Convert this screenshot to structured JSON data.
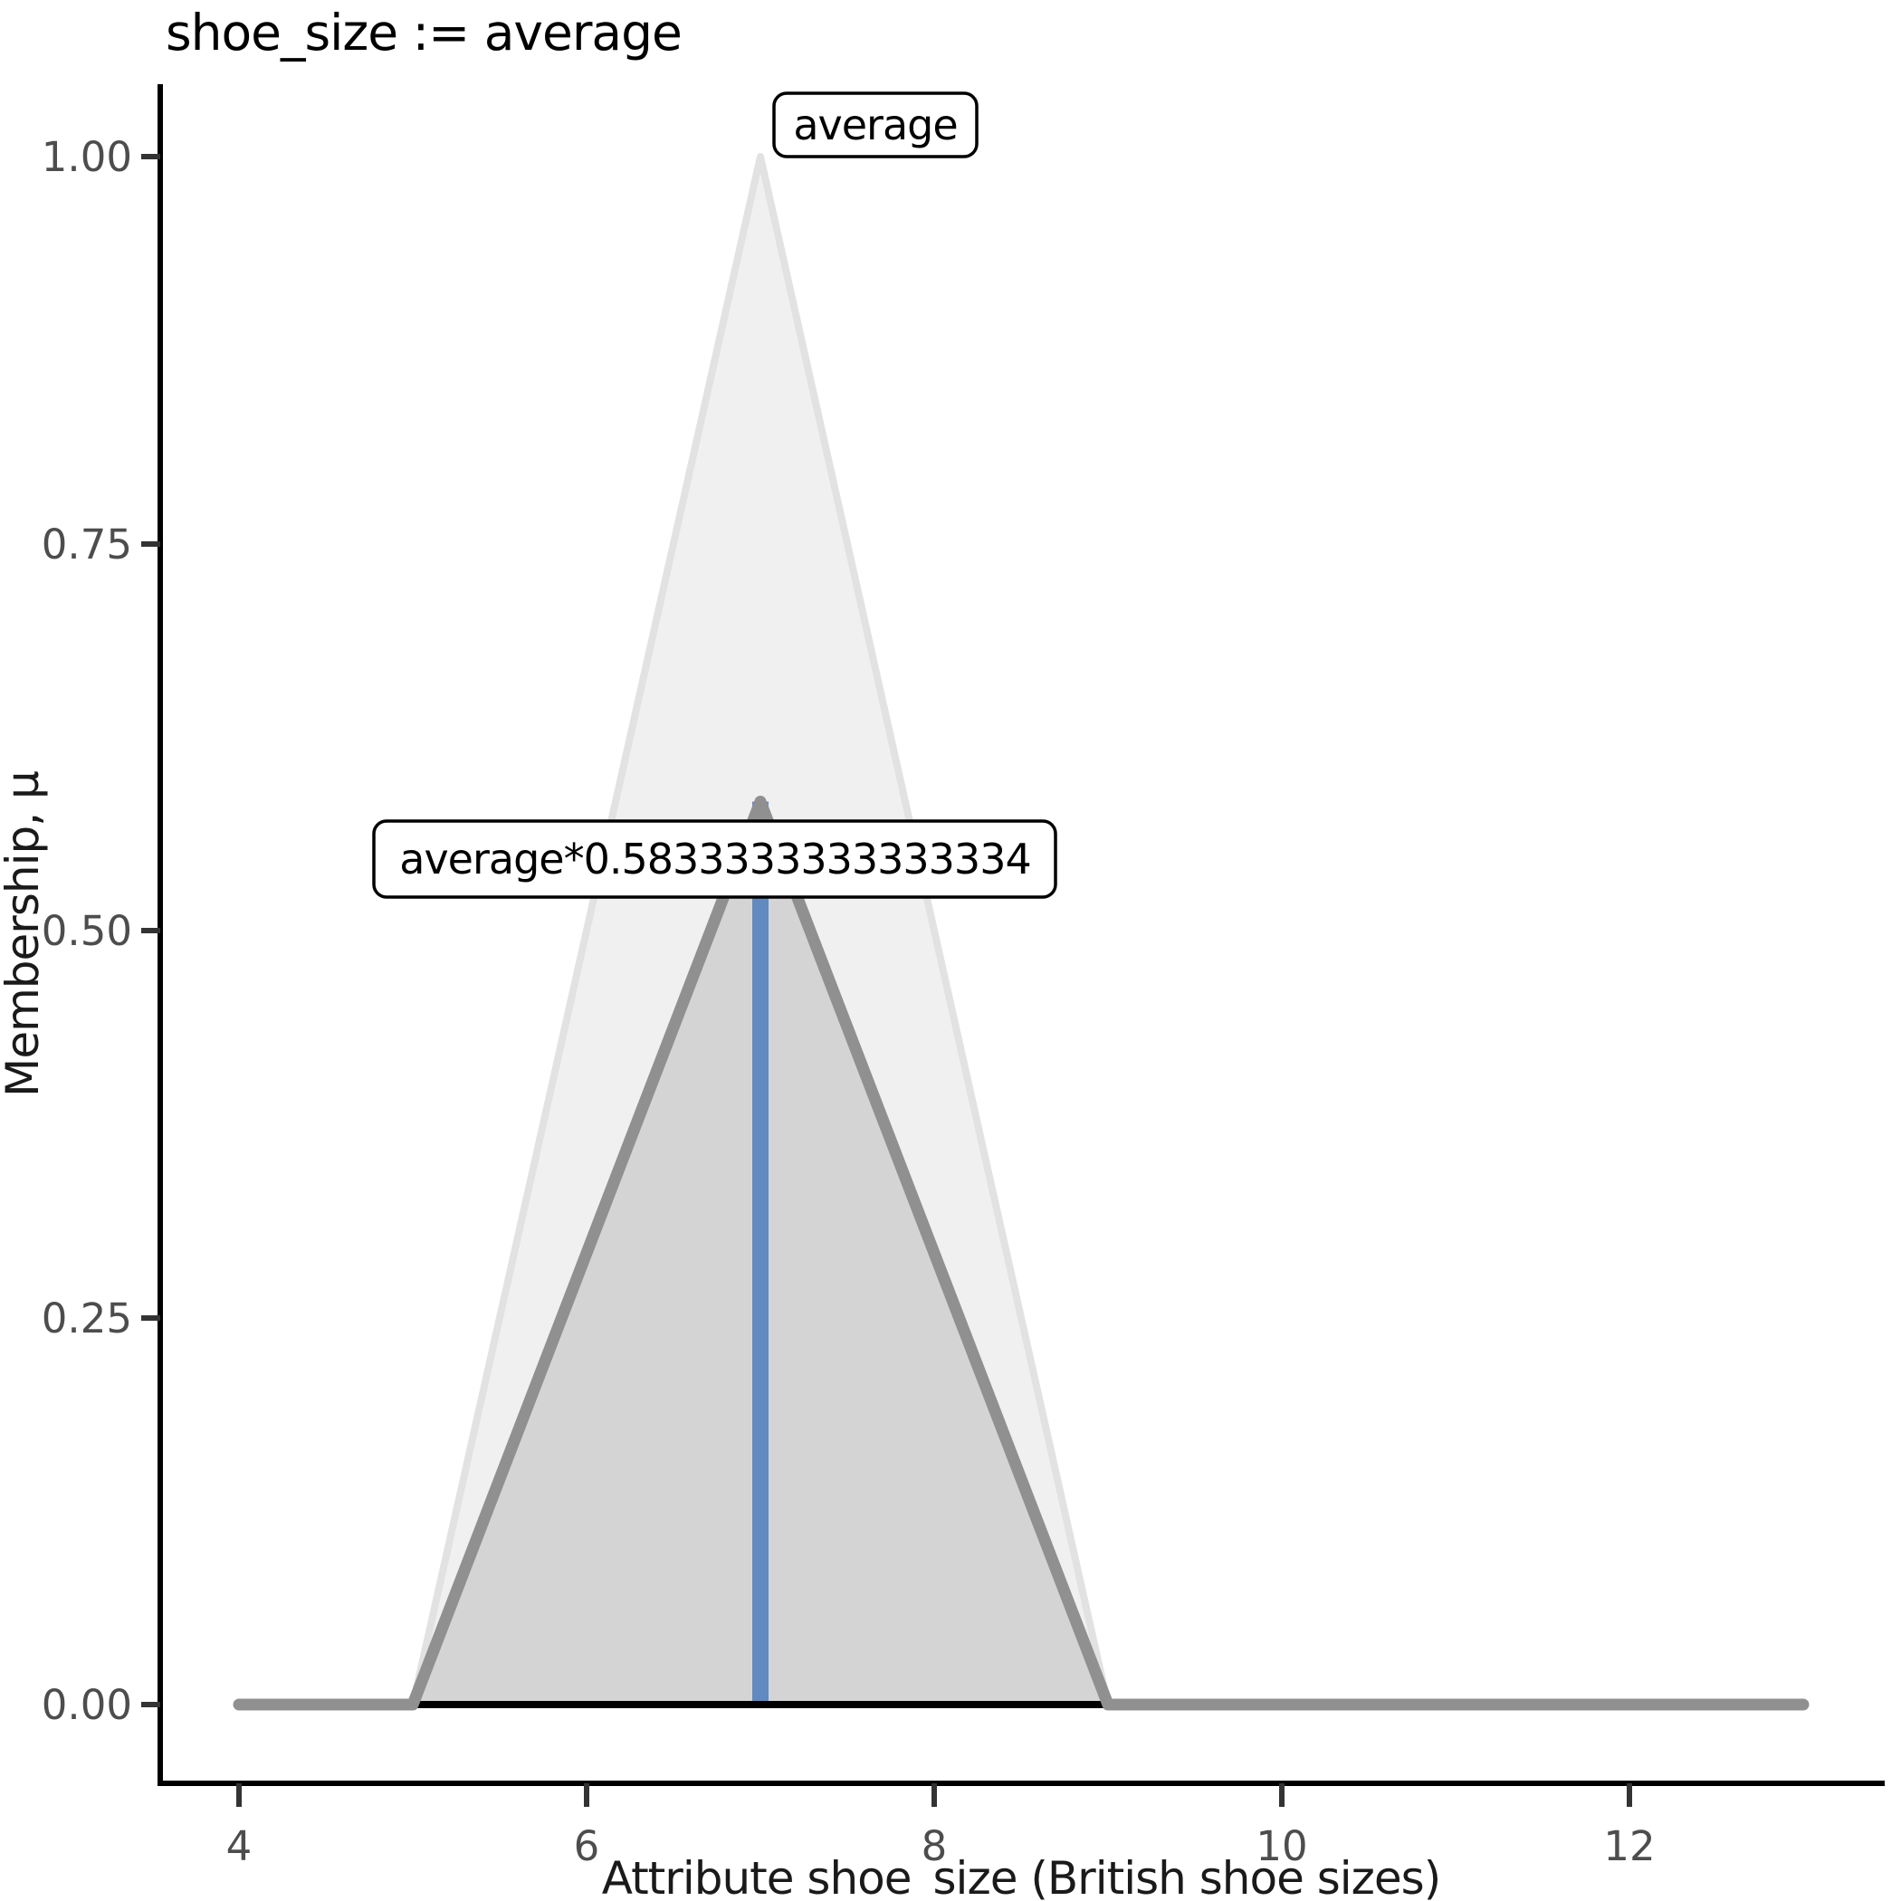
{
  "chart_data": {
    "type": "area",
    "title": "shoe_size := average",
    "xlabel": "Attribute shoe_size (British shoe sizes)",
    "ylabel": "Membership, μ",
    "xlim": [
      4,
      13
    ],
    "ylim": [
      0,
      1
    ],
    "grid": "off",
    "legend": "none",
    "x_ticks": [
      4,
      6,
      8,
      10,
      12
    ],
    "x_tick_labels": [
      "4",
      "6",
      "8",
      "10",
      "12"
    ],
    "y_ticks": [
      0,
      0.25,
      0.5,
      0.75,
      1
    ],
    "y_tick_labels": [
      "0.00",
      "0.25",
      "0.50",
      "0.75",
      "1.00"
    ],
    "series": [
      {
        "name": "average",
        "points": [
          [
            4,
            0
          ],
          [
            5,
            0
          ],
          [
            7,
            1
          ],
          [
            9,
            0
          ],
          [
            13,
            0
          ]
        ],
        "fill": "#f0f0f0",
        "stroke": "#e2e2e2",
        "stroke_width": 8
      },
      {
        "name": "average*0.5833333333333334",
        "points": [
          [
            4,
            0
          ],
          [
            5,
            0
          ],
          [
            7,
            0.5833333333333334
          ],
          [
            9,
            0
          ],
          [
            13,
            0
          ]
        ],
        "fill": "#d4d4d4",
        "stroke": "#909090",
        "stroke_width": 13
      }
    ],
    "marker_line": {
      "x": 7,
      "y_from": 0,
      "y_to": 0.5833333333333334,
      "color": "#6289c0",
      "width": 18
    },
    "baseline": {
      "y": 0,
      "x_from": 4,
      "x_to": 13,
      "color": "#000000",
      "width": 8
    },
    "annotations": [
      {
        "text": "average",
        "anchor_x": 7,
        "anchor_y": 1.0
      },
      {
        "text": "average*0.5833333333333334",
        "anchor_x": 7,
        "anchor_y": 0.5833333333333334
      }
    ]
  },
  "colors": {
    "background": "#ffffff",
    "axis": "#000000",
    "tick_text": "#4d4d4d",
    "title_text": "#000000",
    "set_fill": "#f0f0f0",
    "set_stroke": "#e2e2e2",
    "scaled_set_fill": "#d4d4d4",
    "scaled_set_stroke": "#909090",
    "marker_blue": "#6289c0"
  }
}
